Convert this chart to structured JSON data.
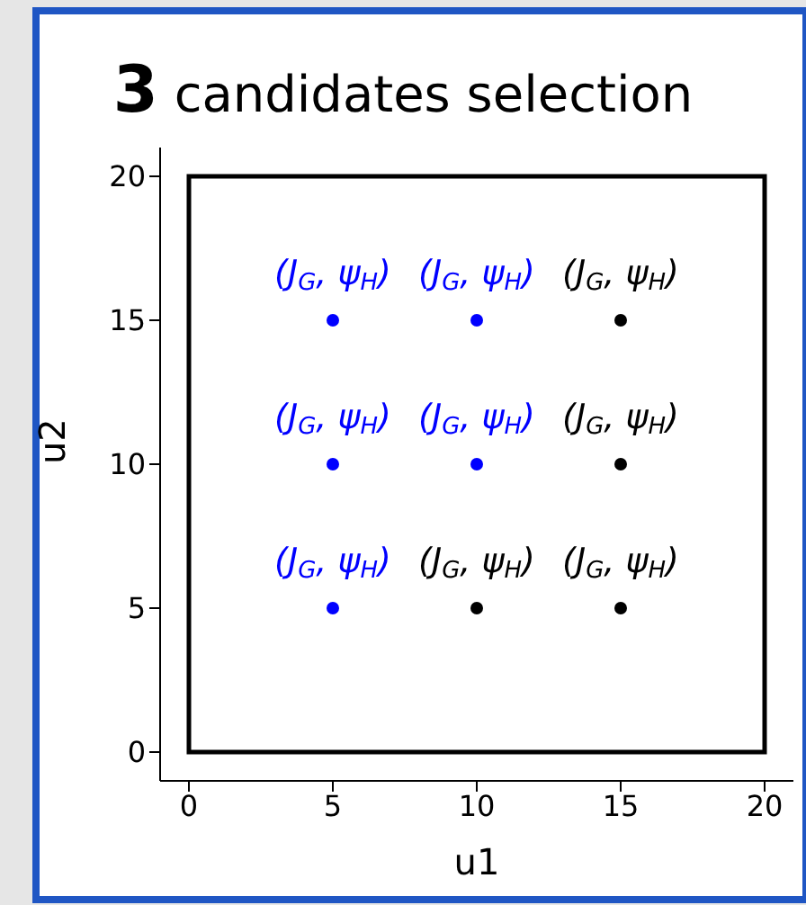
{
  "chart_data": {
    "type": "scatter",
    "title": "3 candidates selection",
    "xlabel": "u1",
    "ylabel": "u2",
    "xlim": [
      -1,
      21
    ],
    "ylim": [
      -1,
      21
    ],
    "xticks": [
      0,
      5,
      10,
      15,
      20
    ],
    "yticks": [
      0,
      5,
      10,
      15,
      20
    ],
    "grid": false,
    "legend": false,
    "marker": "circle",
    "series": [
      {
        "color": "#0000ff",
        "x": [
          5,
          10,
          5,
          10,
          5
        ],
        "values": [
          15,
          15,
          10,
          10,
          5
        ]
      },
      {
        "color": "#000000",
        "x": [
          15,
          15,
          10,
          15
        ],
        "values": [
          15,
          10,
          5,
          5
        ]
      }
    ],
    "annotations": [
      {
        "text": "(J$_{G}$, ψ$_{H}$)",
        "x": 5,
        "y": 15
      },
      {
        "text": "(J$_{G}$, ψ$_{H}$)",
        "x": 10,
        "y": 15
      },
      {
        "text": "(J$_{G}$, ψ$_{H}$)",
        "x": 15,
        "y": 15
      },
      {
        "text": "(J$_{G}$, ψ$_{H}$)",
        "x": 5,
        "y": 10
      },
      {
        "text": "(J$_{G}$, ψ$_{H}$)",
        "x": 10,
        "y": 10
      },
      {
        "text": "(J$_{G}$, ψ$_{H}$)",
        "x": 15,
        "y": 10
      },
      {
        "text": "(J$_{G}$, ψ$_{H}$)",
        "x": 5,
        "y": 5
      },
      {
        "text": "(J$_{G}$, ψ$_{H}$)",
        "x": 10,
        "y": 5
      },
      {
        "text": "(J$_{G}$, ψ$_{H}$)",
        "x": 15,
        "y": 5
      }
    ]
  }
}
